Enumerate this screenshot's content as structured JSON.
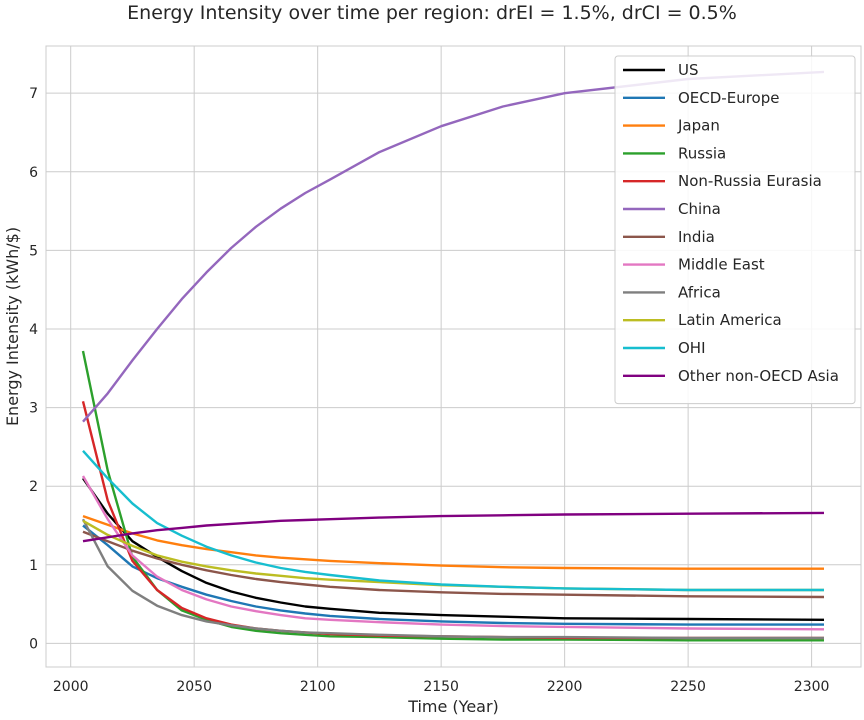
{
  "chart_data": {
    "type": "line",
    "title": "Energy Intensity over time per region: drEI = 1.5%, drCI = 0.5%",
    "xlabel": "Time (Year)",
    "ylabel": "Energy Intensity (kWh/$)",
    "xlim": [
      1990,
      2320
    ],
    "ylim": [
      -0.3,
      7.6
    ],
    "xticks": [
      2000,
      2050,
      2100,
      2150,
      2200,
      2250,
      2300
    ],
    "yticks": [
      0,
      1,
      2,
      3,
      4,
      5,
      6,
      7
    ],
    "grid": true,
    "legend_position": "top-right",
    "x": [
      2005,
      2015,
      2025,
      2035,
      2045,
      2055,
      2065,
      2075,
      2085,
      2095,
      2105,
      2125,
      2150,
      2175,
      2200,
      2250,
      2305
    ],
    "series": [
      {
        "name": "US",
        "color": "#000000",
        "values": [
          2.1,
          1.65,
          1.3,
          1.1,
          0.92,
          0.77,
          0.66,
          0.58,
          0.52,
          0.47,
          0.44,
          0.39,
          0.36,
          0.34,
          0.32,
          0.31,
          0.3
        ]
      },
      {
        "name": "OECD-Europe",
        "color": "#1f77b4",
        "values": [
          1.5,
          1.25,
          0.98,
          0.83,
          0.72,
          0.62,
          0.54,
          0.47,
          0.42,
          0.38,
          0.35,
          0.31,
          0.28,
          0.26,
          0.25,
          0.24,
          0.24
        ]
      },
      {
        "name": "Japan",
        "color": "#ff7f0e",
        "values": [
          1.62,
          1.51,
          1.4,
          1.31,
          1.25,
          1.2,
          1.16,
          1.12,
          1.09,
          1.07,
          1.05,
          1.02,
          0.99,
          0.97,
          0.96,
          0.95,
          0.95
        ]
      },
      {
        "name": "Russia",
        "color": "#2ca02c",
        "values": [
          3.72,
          2.2,
          1.1,
          0.68,
          0.42,
          0.3,
          0.21,
          0.16,
          0.13,
          0.11,
          0.09,
          0.08,
          0.06,
          0.05,
          0.05,
          0.04,
          0.04
        ]
      },
      {
        "name": "Non-Russia Eurasia",
        "color": "#d62728",
        "values": [
          3.08,
          1.82,
          1.05,
          0.68,
          0.45,
          0.32,
          0.24,
          0.19,
          0.16,
          0.14,
          0.12,
          0.1,
          0.09,
          0.08,
          0.07,
          0.07,
          0.07
        ]
      },
      {
        "name": "China",
        "color": "#9467bd",
        "values": [
          2.82,
          3.18,
          3.6,
          4.0,
          4.38,
          4.72,
          5.03,
          5.3,
          5.53,
          5.73,
          5.9,
          6.25,
          6.58,
          6.83,
          7.0,
          7.18,
          7.27
        ]
      },
      {
        "name": "India",
        "color": "#8c564b",
        "values": [
          1.42,
          1.3,
          1.18,
          1.08,
          1.0,
          0.93,
          0.87,
          0.82,
          0.78,
          0.75,
          0.72,
          0.68,
          0.65,
          0.63,
          0.62,
          0.6,
          0.59
        ]
      },
      {
        "name": "Middle East",
        "color": "#e377c2",
        "values": [
          2.13,
          1.58,
          1.12,
          0.85,
          0.68,
          0.56,
          0.47,
          0.41,
          0.36,
          0.32,
          0.3,
          0.27,
          0.24,
          0.22,
          0.21,
          0.19,
          0.18
        ]
      },
      {
        "name": "Africa",
        "color": "#7f7f7f",
        "values": [
          1.58,
          0.98,
          0.67,
          0.48,
          0.36,
          0.28,
          0.23,
          0.19,
          0.16,
          0.14,
          0.13,
          0.11,
          0.09,
          0.08,
          0.08,
          0.07,
          0.07
        ]
      },
      {
        "name": "Latin America",
        "color": "#bcbd22",
        "values": [
          1.56,
          1.38,
          1.24,
          1.12,
          1.04,
          0.98,
          0.93,
          0.89,
          0.86,
          0.83,
          0.81,
          0.78,
          0.74,
          0.72,
          0.7,
          0.68,
          0.68
        ]
      },
      {
        "name": "OHI",
        "color": "#17becf",
        "values": [
          2.45,
          2.1,
          1.78,
          1.53,
          1.37,
          1.23,
          1.12,
          1.03,
          0.96,
          0.91,
          0.87,
          0.8,
          0.75,
          0.72,
          0.7,
          0.68,
          0.68
        ]
      },
      {
        "name": "Other non-OECD Asia",
        "color": "#800080",
        "values": [
          1.3,
          1.35,
          1.4,
          1.44,
          1.47,
          1.5,
          1.52,
          1.54,
          1.56,
          1.57,
          1.58,
          1.6,
          1.62,
          1.63,
          1.64,
          1.65,
          1.66
        ]
      }
    ]
  }
}
